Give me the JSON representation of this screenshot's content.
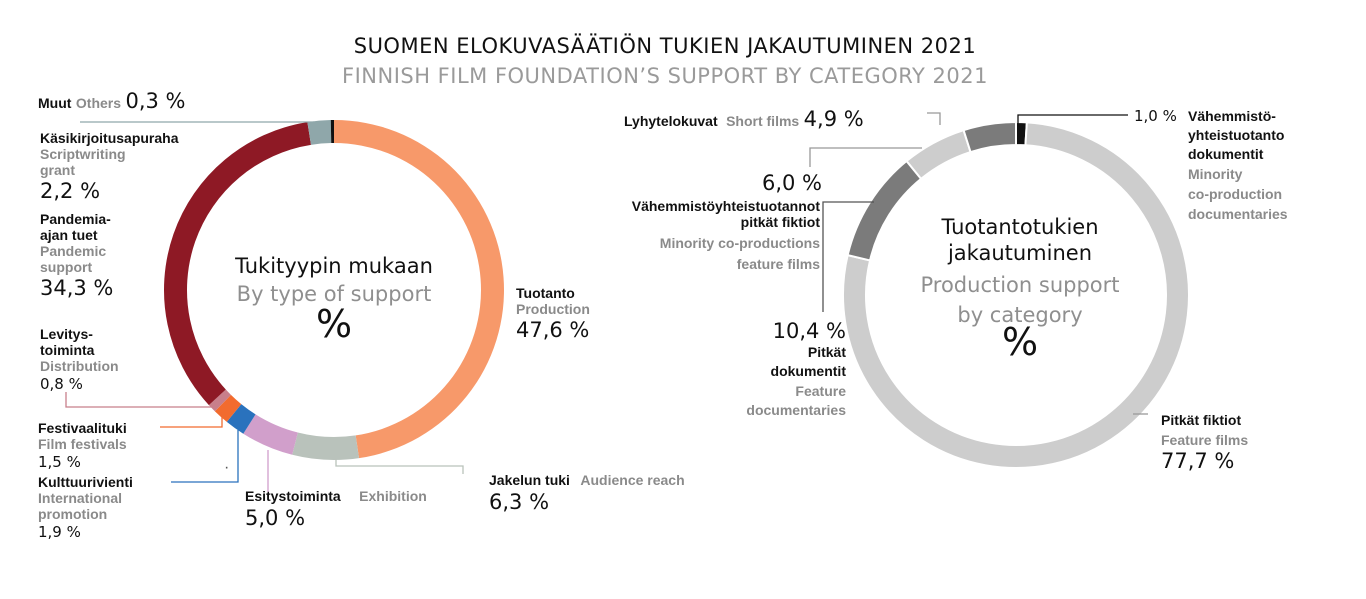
{
  "title_fi": "SUOMEN ELOKUVASÄÄTIÖN TUKIEN JAKAUTUMINEN 2021",
  "title_en": "FINNISH FILM FOUNDATION’S SUPPORT BY CATEGORY 2021",
  "chart_data": [
    {
      "type": "pie",
      "variant": "donut",
      "center_label_fi": "Tukityypin mukaan",
      "center_label_en": "By type of support",
      "unit": "%",
      "slices": [
        {
          "label_fi": "Tuotanto",
          "label_en": "Production",
          "value": 47.6,
          "value_text": "47,6 %",
          "color": "#F7996A"
        },
        {
          "label_fi": "Jakelun tuki",
          "label_en": "Audience reach",
          "value": 6.3,
          "value_text": "6,3 %",
          "color": "#B9C2BB"
        },
        {
          "label_fi": "Esitystoiminta",
          "label_en": "Exhibition",
          "value": 5.0,
          "value_text": "5,0 %",
          "color": "#D19FCB"
        },
        {
          "label_fi": "Kulttuurivienti",
          "label_en": "International promotion",
          "value": 1.9,
          "value_text": "1,9 %",
          "color": "#2A72BD"
        },
        {
          "label_fi": "Festivaalituki",
          "label_en": "Film festivals",
          "value": 1.5,
          "value_text": "1,5 %",
          "color": "#F26B2E"
        },
        {
          "label_fi": "Levitystoiminta",
          "label_en": "Distribution",
          "value": 0.8,
          "value_text": "0,8 %",
          "color": "#C87F8B"
        },
        {
          "label_fi": "Pandemia-ajan tuet",
          "label_en": "Pandemic support",
          "value": 34.3,
          "value_text": "34,3 %",
          "color": "#8E1925"
        },
        {
          "label_fi": "Käsikirjoitusapuraha",
          "label_en": "Scriptwriting grant",
          "value": 2.2,
          "value_text": "2,2 %",
          "color": "#8FA7AA"
        },
        {
          "label_fi": "Muut",
          "label_en": "Others",
          "value": 0.3,
          "value_text": "0,3 %",
          "color": "#111111"
        }
      ]
    },
    {
      "type": "pie",
      "variant": "donut",
      "center_label_fi": "Tuotantotukien jakautuminen",
      "center_label_en": "Production support by category",
      "unit": "%",
      "slices": [
        {
          "label_fi": "Vähemmistöyhteistuotanto dokumentit",
          "label_en": "Minority co-production documentaries",
          "value": 1.0,
          "value_text": "1,0 %",
          "color": "#111111"
        },
        {
          "label_fi": "Pitkät fiktiot",
          "label_en": "Feature films",
          "value": 77.7,
          "value_text": "77,7 %",
          "color": "#CDCDCD"
        },
        {
          "label_fi": "Pitkät dokumentit",
          "label_en": "Feature documentaries",
          "value": 10.4,
          "value_text": "10,4 %",
          "color": "#7B7B7B"
        },
        {
          "label_fi": "Vähemmistöyhteistuotannot pitkät fiktiot",
          "label_en": "Minority co-productions feature films",
          "value": 6.0,
          "value_text": "6,0 %",
          "color": "#CDCDCD"
        },
        {
          "label_fi": "Lyhytelokuvat",
          "label_en": "Short films",
          "value": 4.9,
          "value_text": "4,9 %",
          "color": "#7B7B7B"
        }
      ]
    }
  ],
  "labels": {
    "muut_fi": "Muut",
    "muut_en": "Others",
    "muut_val": "0,3 %",
    "kasi_fi": "Käsikirjoitusapuraha",
    "kasi_en_1": "Scriptwriting",
    "kasi_en_2": "grant",
    "kasi_val": "2,2 %",
    "pand_fi_1": "Pandemia-",
    "pand_fi_2": "ajan tuet",
    "pand_en_1": "Pandemic",
    "pand_en_2": "support",
    "pand_val": "34,3 %",
    "lev_fi_1": "Levitys-",
    "lev_fi_2": "toiminta",
    "lev_en": "Distribution",
    "lev_val": "0,8 %",
    "fest_fi": "Festivaalituki",
    "fest_en": "Film festivals",
    "fest_val": "1,5 %",
    "kult_fi": "Kulttuurivienti",
    "kult_en_1": "International",
    "kult_en_2": "promotion",
    "kult_val": "1,9 %",
    "esit_fi": "Esitystoiminta",
    "esit_en": "Exhibition",
    "esit_val": "5,0 %",
    "jak_fi": "Jakelun tuki",
    "jak_en": "Audience reach",
    "jak_val": "6,3 %",
    "tuot_fi": "Tuotanto",
    "tuot_en": "Production",
    "tuot_val": "47,6 %",
    "c1_fi": "Tukityypin mukaan",
    "c1_en": "By type of support",
    "c1_pct": "%",
    "lyh_fi": "Lyhytelokuvat",
    "lyh_en": "Short films",
    "lyh_val": "4,9 %",
    "vfic_val": "6,0 %",
    "vfic_fi_1": "Vähemmistöyhteistuotannot",
    "vfic_fi_2": "pitkät fiktiot",
    "vfic_en_1": "Minority co-productions",
    "vfic_en_2": "feature films",
    "pdok_val": "10,4 %",
    "pdok_fi_1": "Pitkät",
    "pdok_fi_2": "dokumentit",
    "pdok_en_1": "Feature",
    "pdok_en_2": "documentaries",
    "vdok_val": "1,0 %",
    "vdok_fi_1": "Vähemmistö-",
    "vdok_fi_2": "yhteistuotanto",
    "vdok_fi_3": "dokumentit",
    "vdok_en_1": "Minority",
    "vdok_en_2": "co-production",
    "vdok_en_3": "documentaries",
    "pfic_fi": "Pitkät fiktiot",
    "pfic_en": "Feature films",
    "pfic_val": "77,7 %",
    "c2_fi_1": "Tuotantotukien",
    "c2_fi_2": "jakautuminen",
    "c2_en_1": "Production support",
    "c2_en_2": "by category",
    "c2_pct": "%",
    "dot": "·"
  }
}
